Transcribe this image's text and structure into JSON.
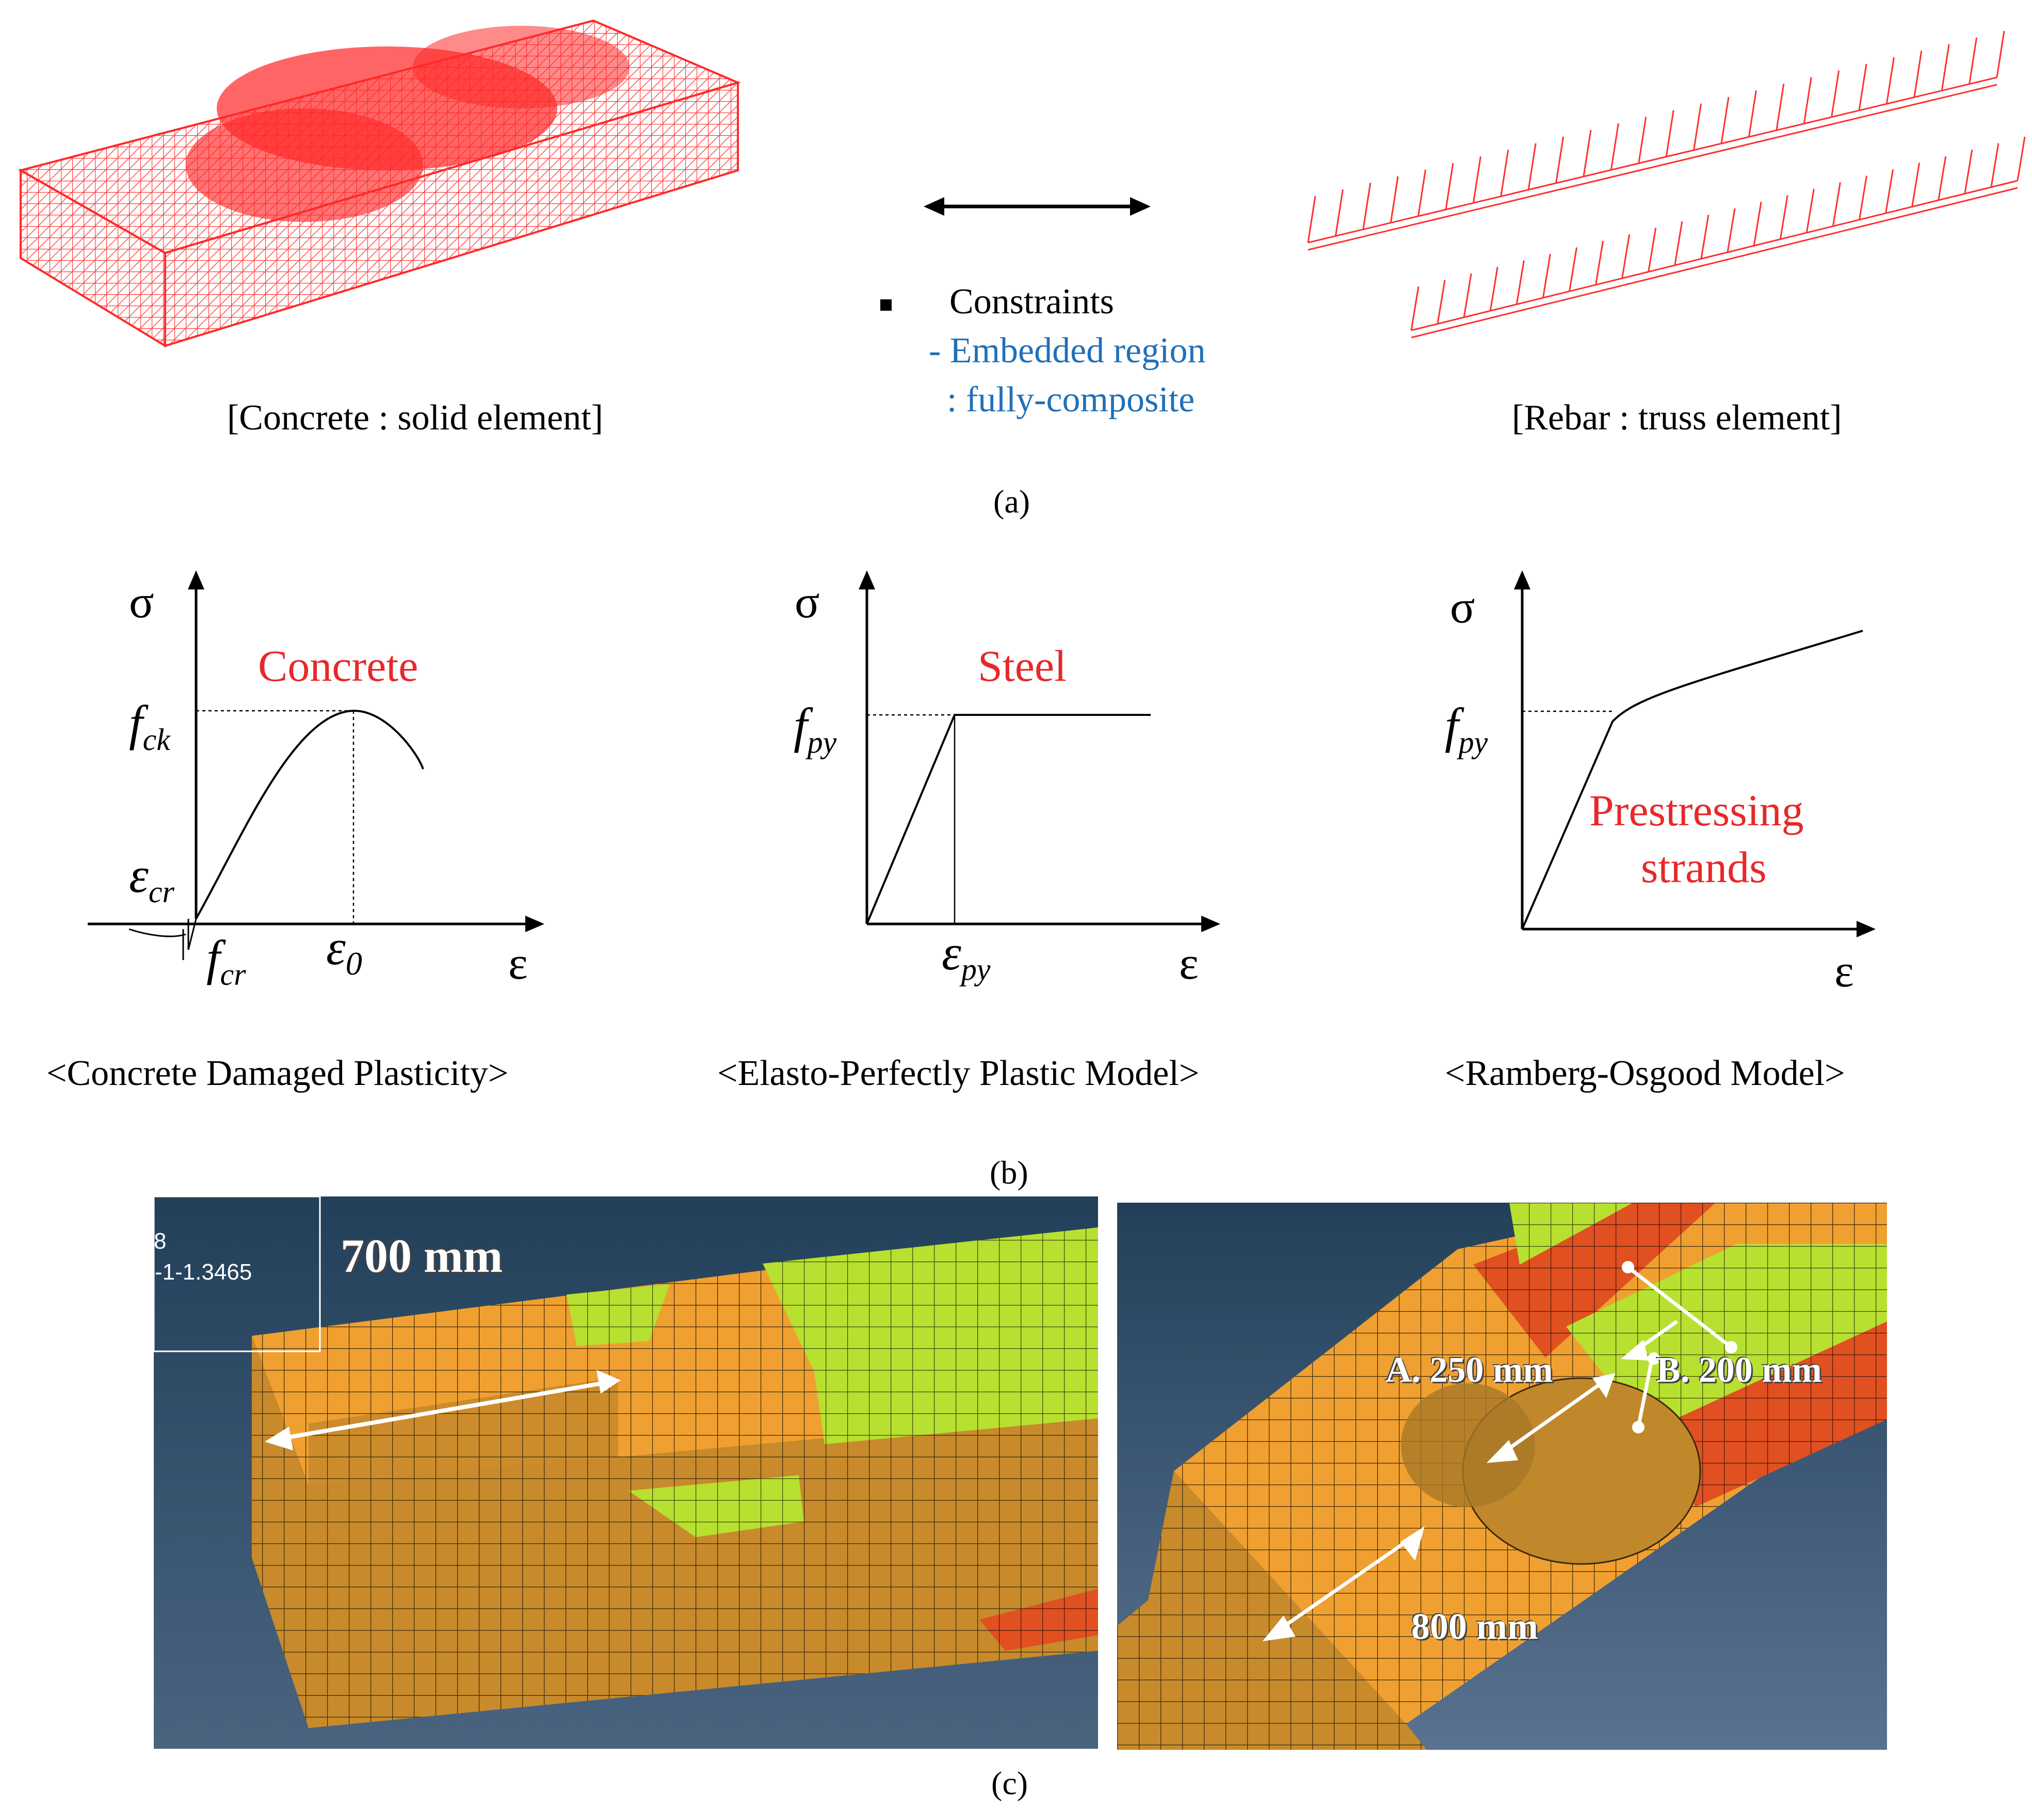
{
  "panel_a": {
    "concrete_caption": "[Concrete : solid element]",
    "rebar_caption": "[Rebar : truss element]",
    "constraints_heading": "Constraints",
    "constraints_line1": "- Embedded region",
    "constraints_line2": ": fully-composite",
    "label": "(a)"
  },
  "panel_b": {
    "label": "(b)",
    "concrete": {
      "title": "Concrete",
      "y_axis": "σ",
      "x_axis": "ε",
      "fck": "f",
      "fck_sub": "ck",
      "ecr": "ε",
      "ecr_sub": "cr",
      "fcr": "f",
      "fcr_sub": "cr",
      "e0": "ε",
      "e0_sub": "0",
      "caption": "<Concrete Damaged Plasticity>"
    },
    "steel": {
      "title": "Steel",
      "y_axis": "σ",
      "x_axis": "ε",
      "fpy": "f",
      "fpy_sub": "py",
      "epy": "ε",
      "epy_sub": "py",
      "caption": "<Elasto-Perfectly Plastic Model>"
    },
    "strands": {
      "title_line1": "Prestressing",
      "title_line2": "strands",
      "y_axis": "σ",
      "x_axis": "ε",
      "fpy": "f",
      "fpy_sub": "py",
      "caption": "<Ramberg-Osgood Model>"
    }
  },
  "panel_c": {
    "label": "(c)",
    "left_dim": "700 mm",
    "legend_line1": "8",
    "legend_line2": "-1-1.3465",
    "dim_a": "A. 250 mm",
    "dim_b": "B. 200 mm",
    "dim_length": "800 mm"
  },
  "colors": {
    "red": "#e8282a",
    "blue": "#2070b8",
    "fe_orange": "#f0a030",
    "fe_green": "#b8e030",
    "fe_red": "#e05020",
    "fe_bg": "#23405a"
  }
}
